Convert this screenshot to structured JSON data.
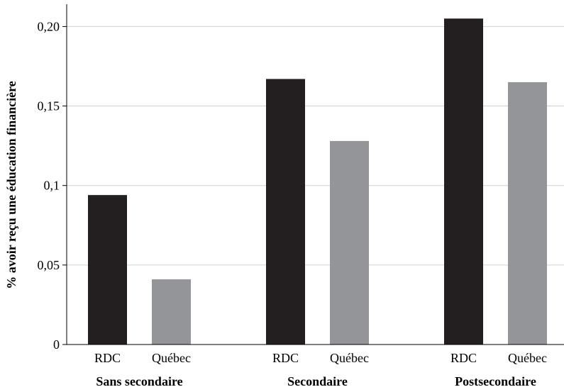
{
  "chart_data": {
    "type": "bar",
    "ylabel": "% avoir reçu une éducation financière",
    "ylim": [
      0,
      0.214
    ],
    "yticks": [
      0,
      0.05,
      0.1,
      0.15,
      0.2
    ],
    "ytick_labels": [
      "0",
      "0,05",
      "0,1",
      "0,15",
      "0,20"
    ],
    "grid": true,
    "groups": [
      {
        "label": "Sans secondaire",
        "bars": [
          {
            "label": "RDC",
            "value": 0.094,
            "color": "#231f20"
          },
          {
            "label": "Québec",
            "value": 0.041,
            "color": "#939598"
          }
        ]
      },
      {
        "label": "Secondaire",
        "bars": [
          {
            "label": "RDC",
            "value": 0.167,
            "color": "#231f20"
          },
          {
            "label": "Québec",
            "value": 0.128,
            "color": "#939598"
          }
        ]
      },
      {
        "label": "Postsecondaire",
        "bars": [
          {
            "label": "RDC",
            "value": 0.205,
            "color": "#231f20"
          },
          {
            "label": "Québec",
            "value": 0.165,
            "color": "#939598"
          }
        ]
      }
    ]
  }
}
